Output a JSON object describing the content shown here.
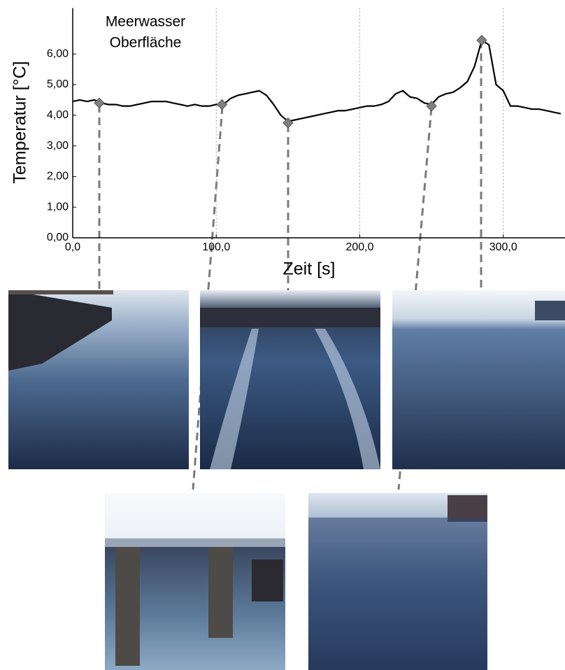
{
  "chart_data": {
    "type": "line",
    "title_lines": [
      "Meerwasser",
      "Oberfläche"
    ],
    "y_label": "Temperatur [°C]",
    "x_label": "Zeit [s]",
    "color": "#000000",
    "x": [
      0,
      5,
      10,
      15,
      20,
      25,
      30,
      35,
      40,
      45,
      50,
      55,
      60,
      65,
      70,
      75,
      80,
      85,
      90,
      95,
      100,
      105,
      110,
      115,
      120,
      125,
      130,
      135,
      140,
      145,
      150,
      155,
      160,
      165,
      170,
      175,
      180,
      185,
      190,
      195,
      200,
      205,
      210,
      215,
      220,
      225,
      230,
      235,
      240,
      245,
      250,
      255,
      260,
      265,
      270,
      275,
      280,
      285,
      290,
      295,
      300,
      305,
      310,
      315,
      320,
      325,
      330,
      335,
      340
    ],
    "values": [
      4.45,
      4.5,
      4.45,
      4.5,
      4.4,
      4.35,
      4.35,
      4.3,
      4.3,
      4.35,
      4.4,
      4.45,
      4.45,
      4.45,
      4.4,
      4.35,
      4.3,
      4.35,
      4.3,
      4.3,
      4.35,
      4.35,
      4.55,
      4.65,
      4.7,
      4.75,
      4.8,
      4.65,
      4.35,
      4.0,
      3.8,
      3.85,
      3.9,
      3.95,
      4.0,
      4.05,
      4.1,
      4.15,
      4.15,
      4.2,
      4.25,
      4.3,
      4.3,
      4.35,
      4.45,
      4.7,
      4.8,
      4.6,
      4.55,
      4.4,
      4.35,
      4.6,
      4.7,
      4.75,
      4.9,
      5.1,
      5.6,
      6.45,
      6.3,
      5.0,
      4.8,
      4.3,
      4.3,
      4.25,
      4.2,
      4.2,
      4.15,
      4.1,
      4.05
    ],
    "markers": {
      "color": "#808080",
      "x": [
        18.5,
        104,
        150,
        250,
        285
      ],
      "values": [
        4.4,
        4.35,
        3.75,
        4.3,
        6.45
      ]
    },
    "xlim": [
      0,
      343
    ],
    "ylim": [
      0,
      7.5
    ],
    "xticks": [
      {
        "value": 0,
        "label": "0,0"
      },
      {
        "value": 100,
        "label": "100,0"
      },
      {
        "value": 200,
        "label": "200,0"
      },
      {
        "value": 300,
        "label": "300,0"
      }
    ],
    "yticks": [
      {
        "value": 0,
        "label": "0,00"
      },
      {
        "value": 1,
        "label": "1,00"
      },
      {
        "value": 2,
        "label": "2,00"
      },
      {
        "value": 3,
        "label": "3,00"
      },
      {
        "value": 4,
        "label": "4,00"
      },
      {
        "value": 5,
        "label": "5,00"
      },
      {
        "value": 6,
        "label": "6,00"
      }
    ],
    "grid": true
  }
}
